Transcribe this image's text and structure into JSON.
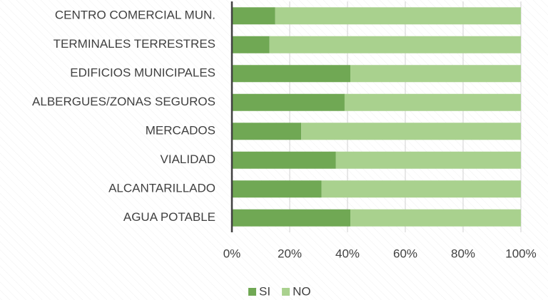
{
  "chart_data": {
    "type": "stacked-barh",
    "categories": [
      "CENTRO COMERCIAL  MUN.",
      "TERMINALES TERRESTRES",
      "EDIFICIOS MUNICIPALES",
      "ALBERGUES/ZONAS SEGUROS",
      "MERCADOS",
      "VIALIDAD",
      "ALCANTARILLADO",
      "AGUA POTABLE"
    ],
    "series": [
      {
        "name": "SI",
        "color": "#70a854",
        "values": [
          15,
          13,
          41,
          39,
          24,
          36,
          31,
          41
        ]
      },
      {
        "name": "NO",
        "color": "#a9d18e",
        "values": [
          85,
          87,
          59,
          61,
          76,
          64,
          69,
          59
        ]
      }
    ],
    "xlim": [
      0,
      100
    ],
    "xticks": [
      {
        "value": 0,
        "label": "0%"
      },
      {
        "value": 20,
        "label": "20%"
      },
      {
        "value": 40,
        "label": "40%"
      },
      {
        "value": 60,
        "label": "60%"
      },
      {
        "value": 80,
        "label": "80%"
      },
      {
        "value": 100,
        "label": "100%"
      }
    ],
    "grid": true,
    "legend": "bottom"
  }
}
